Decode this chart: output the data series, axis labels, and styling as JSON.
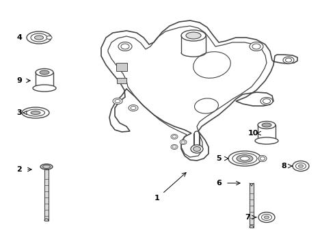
{
  "bg_color": "#ffffff",
  "line_color": "#444444",
  "label_color": "#000000",
  "fig_width": 4.9,
  "fig_height": 3.6,
  "dpi": 100,
  "xlim": [
    0,
    490
  ],
  "ylim": [
    0,
    360
  ]
}
